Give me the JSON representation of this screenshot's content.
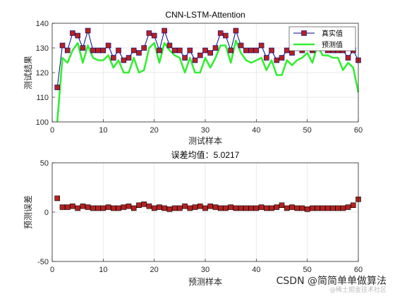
{
  "chart_data": [
    {
      "type": "line",
      "title": "CNN-LSTM-Attention",
      "xlabel": "测试样本",
      "ylabel": "测试结果",
      "xlim": [
        0,
        60
      ],
      "ylim": [
        100,
        140
      ],
      "xticks": [
        0,
        10,
        20,
        30,
        40,
        50,
        60
      ],
      "yticks": [
        100,
        110,
        120,
        130,
        140
      ],
      "grid": true,
      "legend_position": "top-right",
      "series": [
        {
          "name": "真实值",
          "color": "#00008b",
          "marker": "square",
          "marker_fill": "#b22222",
          "x": [
            1,
            2,
            3,
            4,
            5,
            6,
            7,
            8,
            9,
            10,
            11,
            12,
            13,
            14,
            15,
            16,
            17,
            18,
            19,
            20,
            21,
            22,
            23,
            24,
            25,
            26,
            27,
            28,
            29,
            30,
            31,
            32,
            33,
            34,
            35,
            36,
            37,
            38,
            39,
            40,
            41,
            42,
            43,
            44,
            45,
            46,
            47,
            48,
            49,
            50,
            51,
            52,
            53,
            54,
            55,
            56,
            57,
            58,
            59,
            60
          ],
          "values": [
            114,
            131,
            129,
            136,
            135,
            130,
            137,
            129,
            129,
            129,
            131,
            126,
            129,
            125,
            126,
            129,
            128,
            130,
            136,
            135,
            129,
            137,
            131,
            129,
            129,
            126,
            129,
            125,
            127,
            129,
            128,
            130,
            136,
            135,
            129,
            137,
            131,
            129,
            129,
            129,
            131,
            126,
            129,
            125,
            126,
            129,
            128,
            130,
            129,
            130,
            129,
            137,
            131,
            129,
            129,
            129,
            129,
            126,
            129,
            125
          ]
        },
        {
          "name": "预测值",
          "color": "#33ee33",
          "x": [
            1,
            2,
            3,
            4,
            5,
            6,
            7,
            8,
            9,
            10,
            11,
            12,
            13,
            14,
            15,
            16,
            17,
            18,
            19,
            20,
            21,
            22,
            23,
            24,
            25,
            26,
            27,
            28,
            29,
            30,
            31,
            32,
            33,
            34,
            35,
            36,
            37,
            38,
            39,
            40,
            41,
            42,
            43,
            44,
            45,
            46,
            47,
            48,
            49,
            50,
            51,
            52,
            53,
            54,
            55,
            56,
            57,
            58,
            59,
            60
          ],
          "values": [
            100,
            126,
            124,
            129,
            132,
            124,
            131,
            126,
            125,
            125,
            127,
            122,
            125,
            120,
            120,
            126,
            120,
            121,
            130,
            132,
            124,
            132,
            129,
            127,
            126,
            120,
            126,
            120,
            120,
            126,
            122,
            126,
            131,
            131,
            124,
            133,
            128,
            125,
            124,
            125,
            126,
            121,
            125,
            119,
            119,
            125,
            123,
            125,
            126,
            128,
            124,
            131,
            127,
            127,
            126,
            126,
            121,
            124,
            122,
            112
          ]
        }
      ]
    },
    {
      "type": "scatter",
      "title": "误差均值：5.0217",
      "xlabel": "预测样本",
      "ylabel": "预测误差",
      "xlim": [
        0,
        60
      ],
      "ylim": [
        -50,
        50
      ],
      "xticks": [
        0,
        10,
        20,
        30,
        40,
        50,
        60
      ],
      "yticks": [
        -50,
        0,
        50
      ],
      "grid": true,
      "series": [
        {
          "color": "#000000",
          "marker": "square",
          "marker_fill": "#b22222",
          "x": [
            1,
            2,
            3,
            4,
            5,
            6,
            7,
            8,
            9,
            10,
            11,
            12,
            13,
            14,
            15,
            16,
            17,
            18,
            19,
            20,
            21,
            22,
            23,
            24,
            25,
            26,
            27,
            28,
            29,
            30,
            31,
            32,
            33,
            34,
            35,
            36,
            37,
            38,
            39,
            40,
            41,
            42,
            43,
            44,
            45,
            46,
            47,
            48,
            49,
            50,
            51,
            52,
            53,
            54,
            55,
            56,
            57,
            58,
            59,
            60
          ],
          "values": [
            14,
            5,
            5,
            6,
            4,
            6,
            5,
            4,
            4,
            4,
            5,
            4,
            4,
            5,
            6,
            4,
            7,
            8,
            6,
            4,
            5,
            4,
            3,
            4,
            4,
            6,
            4,
            5,
            6,
            4,
            6,
            5,
            4,
            4,
            5,
            4,
            4,
            4,
            4,
            4,
            5,
            4,
            4,
            5,
            7,
            4,
            5,
            4,
            4,
            3,
            4,
            4,
            4,
            4,
            4,
            4,
            4,
            5,
            7,
            13
          ]
        }
      ]
    }
  ],
  "watermark": {
    "text": "CSDN @简简单单做算法",
    "subtext": "@稀土掘金技术社区"
  }
}
